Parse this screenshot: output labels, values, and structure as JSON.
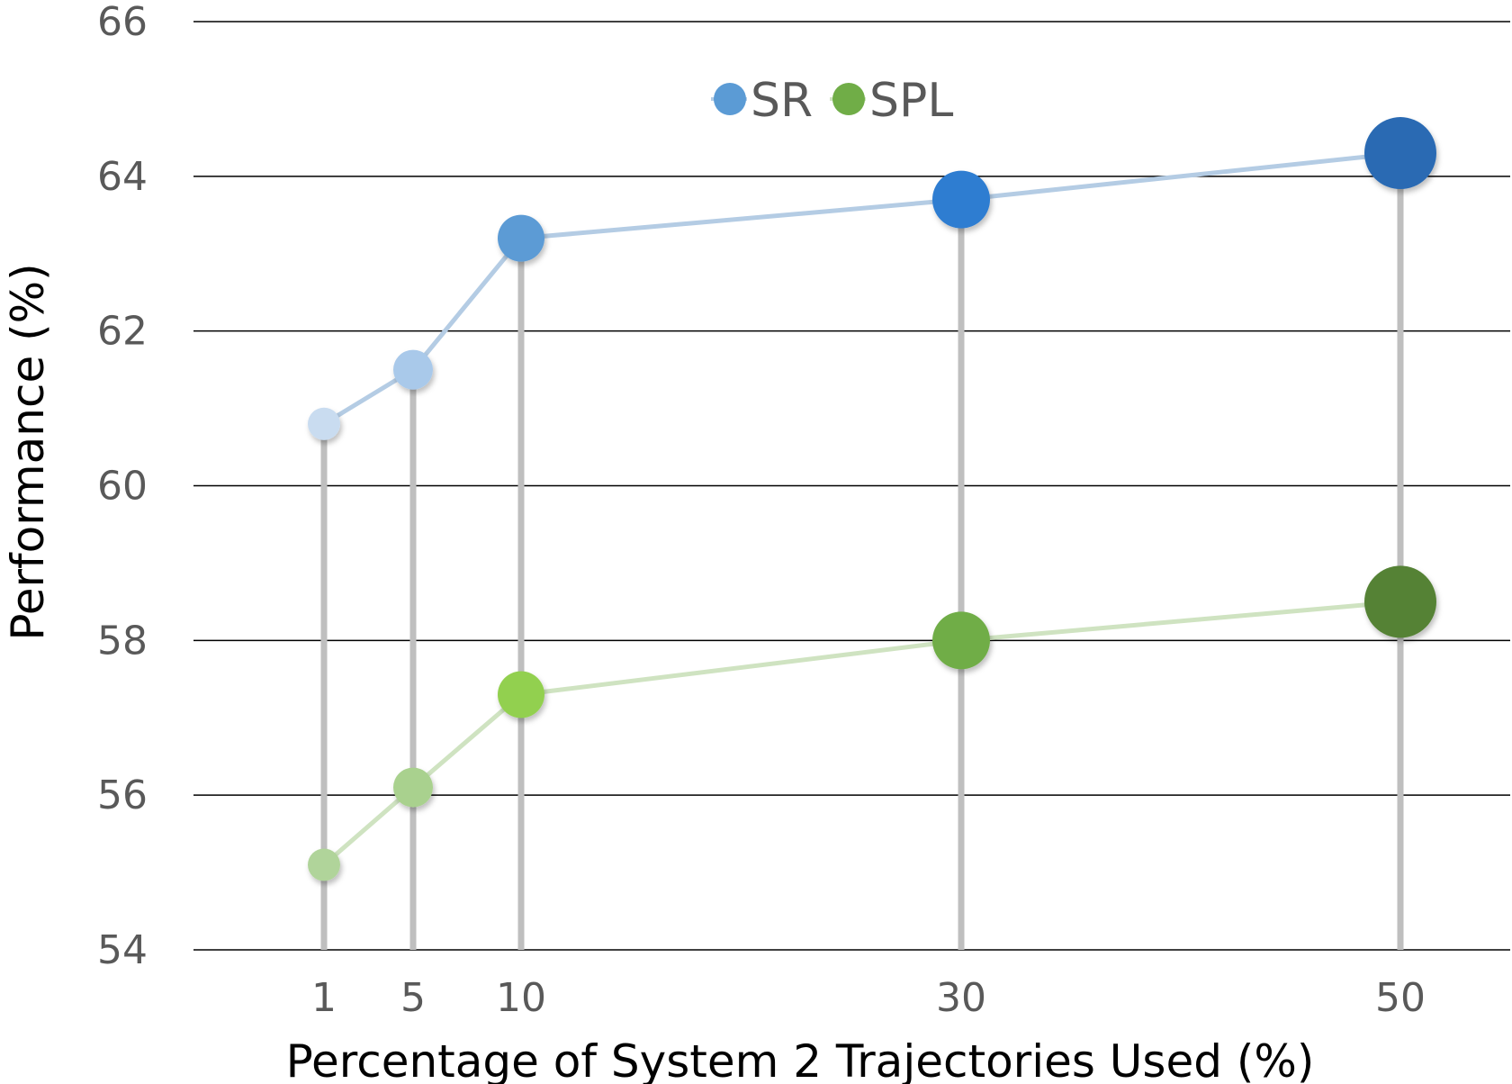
{
  "chart_data": {
    "type": "scatter",
    "xlabel": "Percentage of System 2 Trajectories Used (%)",
    "ylabel": "Performance (%)",
    "x": [
      1,
      5,
      10,
      30,
      50
    ],
    "x_tick_labels": [
      "1",
      "5",
      "10",
      "30",
      "50"
    ],
    "ylim": [
      54,
      66
    ],
    "y_ticks": [
      54,
      56,
      58,
      60,
      62,
      64,
      66
    ],
    "y_tick_labels": [
      "54",
      "56",
      "58",
      "60",
      "62",
      "64",
      "66"
    ],
    "grid": true,
    "legend_position": "top-center",
    "series": [
      {
        "name": "SR",
        "values": [
          60.8,
          61.5,
          63.2,
          63.7,
          64.3
        ],
        "legend_color": "#5b9bd5",
        "line_color": "#b4cce4",
        "point_colors": [
          "#c9dcf0",
          "#a9c9ea",
          "#5b9bd5",
          "#2e7dd1",
          "#2a6bb3"
        ]
      },
      {
        "name": "SPL",
        "values": [
          55.1,
          56.1,
          57.3,
          58.0,
          58.5
        ],
        "legend_color": "#70ad47",
        "line_color": "#cfe3c1",
        "point_colors": [
          "#b0d49a",
          "#a9d18e",
          "#92d050",
          "#70ad47",
          "#548235"
        ]
      }
    ],
    "drop_line_color": "#bfbfbf",
    "gridline_color": "#000000"
  }
}
